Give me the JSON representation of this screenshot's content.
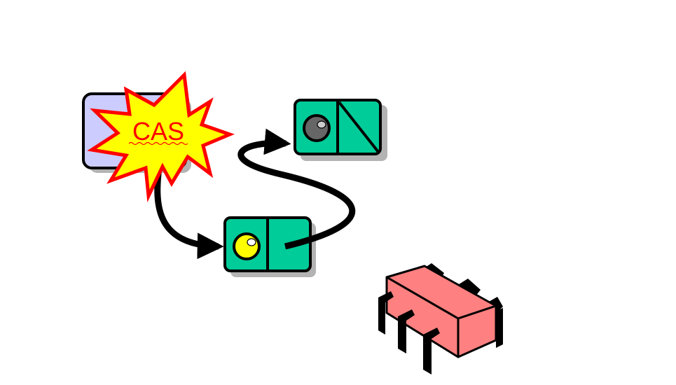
{
  "diagram": {
    "burst": {
      "label": "CAS",
      "fill": "#ffff00",
      "stroke": "#ff0000"
    },
    "head_box": {
      "fill": "#ccccff",
      "stroke": "#000000"
    },
    "node": {
      "fill": "#00cc99",
      "stroke": "#000000",
      "shadow": "#b3b3b3"
    },
    "node_new": {
      "dot_color": "#ffff00"
    },
    "node_old": {
      "dot_color": "#666666",
      "pointer": "null-diagonal"
    },
    "bug": {
      "icon": "bug-icon",
      "body_color": "#ff8080",
      "leg_color": "#000000"
    },
    "arrow_color": "#000000"
  }
}
